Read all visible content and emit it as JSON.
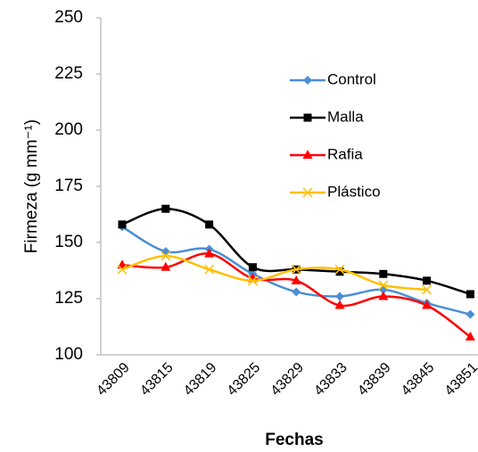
{
  "chart_data": {
    "type": "line",
    "smooth": true,
    "x_label": "Fechas",
    "y_label": "Firmeza (g mm⁻¹)",
    "categories": [
      "43809",
      "43815",
      "43819",
      "43825",
      "43829",
      "43833",
      "43839",
      "43845",
      "43851"
    ],
    "series": [
      {
        "name": "Control",
        "color": "#4a8fd4",
        "marker": "diamond",
        "values": [
          157,
          146,
          147,
          136,
          128,
          126,
          129,
          123,
          118
        ]
      },
      {
        "name": "Malla",
        "color": "#000000",
        "marker": "square",
        "values": [
          158,
          165,
          158,
          139,
          138,
          137,
          136,
          133,
          127
        ]
      },
      {
        "name": "Rafia",
        "color": "#ff0000",
        "marker": "triangle",
        "values": [
          140,
          139,
          145,
          134,
          133,
          122,
          126,
          122,
          108
        ]
      },
      {
        "name": "Plástico",
        "color": "#ffc000",
        "marker": "x",
        "values": [
          138,
          144,
          138,
          133,
          138,
          138,
          131,
          129,
          null
        ]
      }
    ],
    "ylim": [
      100,
      250
    ],
    "yticks": [
      100,
      125,
      150,
      175,
      200,
      225,
      250
    ],
    "grid": false,
    "legend": "upper right"
  }
}
